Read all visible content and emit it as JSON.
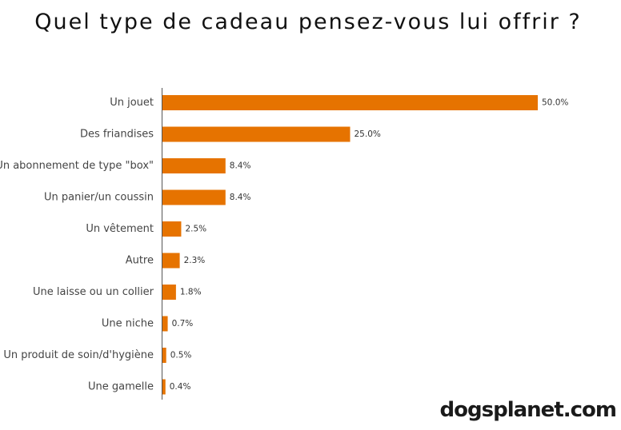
{
  "chart_data": {
    "type": "bar",
    "orientation": "horizontal",
    "title": "Quel type de cadeau pensez-vous lui offrir ?",
    "categories": [
      "Un jouet",
      "Des friandises",
      "Un abonnement de type \"box\"",
      "Un panier/un coussin",
      "Un vêtement",
      "Autre",
      "Une laisse ou un collier",
      "Une niche",
      "Un produit de soin/d'hygiène",
      "Une gamelle"
    ],
    "values": [
      50.0,
      25.0,
      8.4,
      8.4,
      2.5,
      2.3,
      1.8,
      0.7,
      0.5,
      0.4
    ],
    "value_labels": [
      "50.0%",
      "25.0%",
      "8.4%",
      "8.4%",
      "2.5%",
      "2.3%",
      "1.8%",
      "0.7%",
      "0.5%",
      "0.4%"
    ],
    "xlim": [
      0,
      50
    ],
    "grid": false,
    "bar_color": "#e67300"
  },
  "watermark": "dogsplanet.com"
}
